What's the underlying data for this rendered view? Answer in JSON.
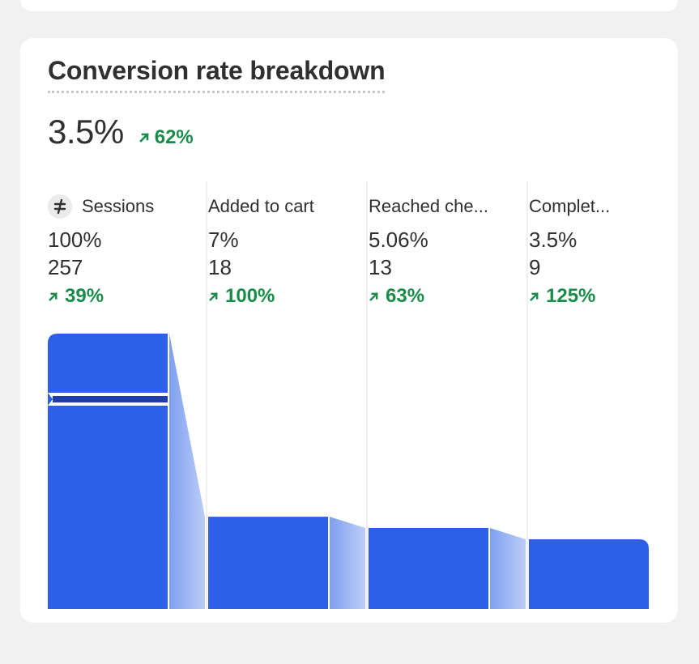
{
  "card": {
    "title": "Conversion rate breakdown",
    "value": "3.5%",
    "change": "62%"
  },
  "colors": {
    "bar": "#2e5fe8",
    "connector_from": "#7f9ff0",
    "connector_to": "#bccdf7",
    "trend_positive": "#1a8c4a"
  },
  "chart_data": {
    "type": "bar",
    "categories": [
      "Sessions",
      "Added to cart",
      "Reached checkout",
      "Completed checkout"
    ],
    "display_labels": [
      "Sessions",
      "Added to cart",
      "Reached che...",
      "Complet..."
    ],
    "values": [
      257,
      18,
      13,
      9
    ],
    "percentages": [
      "100%",
      "7%",
      "5.06%",
      "3.5%"
    ],
    "bar_heights_pct": [
      100,
      33.5,
      29.4,
      25.3
    ],
    "changes": [
      "39%",
      "100%",
      "63%",
      "125%"
    ],
    "axis_break_on_first_bar": true,
    "legend": "none",
    "grid": false
  },
  "icons": {
    "sessions": "not-equal-icon",
    "trend": "arrow-up-right-icon"
  }
}
